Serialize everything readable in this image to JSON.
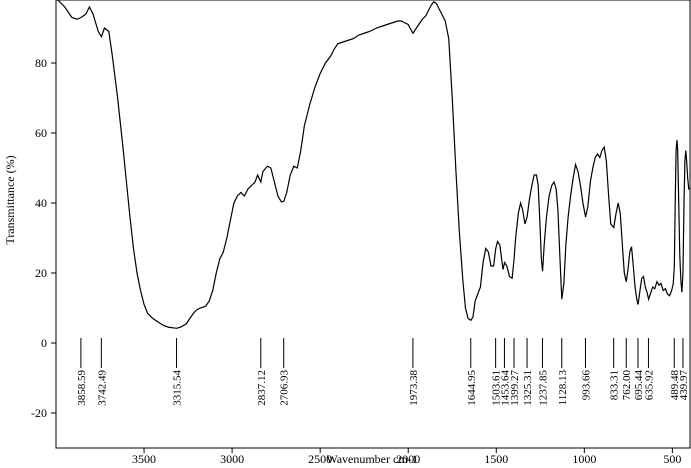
{
  "chart_data": {
    "type": "line",
    "title": "",
    "xlabel": "Wavenumber cm-1",
    "ylabel": "Transmittance (%)",
    "xlim": [
      4000,
      400
    ],
    "ylim": [
      -30,
      98
    ],
    "x_reversed": true,
    "grid": false,
    "x_ticks": [
      3500,
      3000,
      2500,
      2000,
      1500,
      1000,
      500
    ],
    "y_ticks": [
      -20,
      0,
      20,
      40,
      60,
      80
    ],
    "series": [
      {
        "color": "#000000",
        "points": [
          [
            3990,
            98
          ],
          [
            3950,
            96
          ],
          [
            3910,
            93
          ],
          [
            3880,
            92.5
          ],
          [
            3858,
            93
          ],
          [
            3830,
            94
          ],
          [
            3810,
            96
          ],
          [
            3790,
            94
          ],
          [
            3760,
            89
          ],
          [
            3742,
            87.5
          ],
          [
            3725,
            90
          ],
          [
            3700,
            89
          ],
          [
            3680,
            82
          ],
          [
            3650,
            70
          ],
          [
            3620,
            56
          ],
          [
            3600,
            46
          ],
          [
            3580,
            36
          ],
          [
            3560,
            27
          ],
          [
            3540,
            20
          ],
          [
            3520,
            15
          ],
          [
            3500,
            11
          ],
          [
            3480,
            8.5
          ],
          [
            3450,
            7
          ],
          [
            3420,
            6
          ],
          [
            3390,
            5
          ],
          [
            3360,
            4.5
          ],
          [
            3315,
            4.2
          ],
          [
            3290,
            4.6
          ],
          [
            3260,
            5.5
          ],
          [
            3240,
            7
          ],
          [
            3220,
            8.5
          ],
          [
            3200,
            9.5
          ],
          [
            3180,
            10
          ],
          [
            3150,
            10.5
          ],
          [
            3130,
            12
          ],
          [
            3110,
            15
          ],
          [
            3090,
            20
          ],
          [
            3070,
            24
          ],
          [
            3050,
            26
          ],
          [
            3030,
            30
          ],
          [
            3010,
            35
          ],
          [
            2990,
            40
          ],
          [
            2970,
            42
          ],
          [
            2950,
            43
          ],
          [
            2930,
            42
          ],
          [
            2910,
            44
          ],
          [
            2890,
            45
          ],
          [
            2870,
            46
          ],
          [
            2855,
            48
          ],
          [
            2837,
            46
          ],
          [
            2825,
            49
          ],
          [
            2800,
            50.5
          ],
          [
            2780,
            50
          ],
          [
            2760,
            46
          ],
          [
            2740,
            42
          ],
          [
            2720,
            40.3
          ],
          [
            2706,
            40.5
          ],
          [
            2690,
            43
          ],
          [
            2670,
            48
          ],
          [
            2650,
            50.5
          ],
          [
            2630,
            50
          ],
          [
            2610,
            55
          ],
          [
            2590,
            62
          ],
          [
            2560,
            68
          ],
          [
            2530,
            73
          ],
          [
            2500,
            77
          ],
          [
            2470,
            80
          ],
          [
            2440,
            82
          ],
          [
            2420,
            84
          ],
          [
            2400,
            85.5
          ],
          [
            2370,
            86
          ],
          [
            2340,
            86.5
          ],
          [
            2310,
            87
          ],
          [
            2280,
            88
          ],
          [
            2250,
            88.5
          ],
          [
            2220,
            89
          ],
          [
            2200,
            89.5
          ],
          [
            2180,
            90
          ],
          [
            2150,
            90.5
          ],
          [
            2120,
            91
          ],
          [
            2090,
            91.5
          ],
          [
            2060,
            92
          ],
          [
            2040,
            92
          ],
          [
            2020,
            91.5
          ],
          [
            2000,
            91
          ],
          [
            1990,
            90
          ],
          [
            1973,
            88.5
          ],
          [
            1960,
            89.5
          ],
          [
            1940,
            91
          ],
          [
            1920,
            92.5
          ],
          [
            1900,
            93.5
          ],
          [
            1885,
            95
          ],
          [
            1870,
            96.5
          ],
          [
            1855,
            97.5
          ],
          [
            1840,
            97
          ],
          [
            1825,
            95.5
          ],
          [
            1810,
            94
          ],
          [
            1790,
            92
          ],
          [
            1770,
            87
          ],
          [
            1750,
            70
          ],
          [
            1730,
            50
          ],
          [
            1710,
            32
          ],
          [
            1690,
            18
          ],
          [
            1675,
            10
          ],
          [
            1660,
            7
          ],
          [
            1644,
            6.5
          ],
          [
            1632,
            7.5
          ],
          [
            1620,
            12
          ],
          [
            1605,
            14
          ],
          [
            1590,
            16
          ],
          [
            1575,
            23
          ],
          [
            1560,
            27
          ],
          [
            1545,
            26
          ],
          [
            1530,
            22
          ],
          [
            1515,
            22
          ],
          [
            1503,
            27
          ],
          [
            1493,
            29
          ],
          [
            1480,
            28
          ],
          [
            1472,
            25
          ],
          [
            1462,
            21
          ],
          [
            1453,
            23
          ],
          [
            1440,
            22
          ],
          [
            1425,
            19
          ],
          [
            1410,
            18.5
          ],
          [
            1399,
            24
          ],
          [
            1390,
            30
          ],
          [
            1375,
            37
          ],
          [
            1362,
            40
          ],
          [
            1350,
            38
          ],
          [
            1337,
            34
          ],
          [
            1325,
            36
          ],
          [
            1312,
            41
          ],
          [
            1298,
            45
          ],
          [
            1285,
            48
          ],
          [
            1272,
            48
          ],
          [
            1262,
            45
          ],
          [
            1252,
            34
          ],
          [
            1244,
            24
          ],
          [
            1237,
            20.5
          ],
          [
            1228,
            28
          ],
          [
            1215,
            36
          ],
          [
            1200,
            42
          ],
          [
            1185,
            45
          ],
          [
            1172,
            46
          ],
          [
            1160,
            44
          ],
          [
            1150,
            38
          ],
          [
            1140,
            26
          ],
          [
            1128,
            12.5
          ],
          [
            1116,
            17
          ],
          [
            1105,
            28
          ],
          [
            1092,
            36
          ],
          [
            1078,
            42
          ],
          [
            1064,
            47
          ],
          [
            1050,
            51
          ],
          [
            1036,
            49
          ],
          [
            1022,
            45
          ],
          [
            1008,
            40
          ],
          [
            993,
            36
          ],
          [
            980,
            39
          ],
          [
            966,
            46
          ],
          [
            952,
            50
          ],
          [
            938,
            53
          ],
          [
            925,
            54
          ],
          [
            912,
            53
          ],
          [
            900,
            55
          ],
          [
            887,
            56
          ],
          [
            875,
            52
          ],
          [
            862,
            42
          ],
          [
            850,
            34
          ],
          [
            833,
            33
          ],
          [
            820,
            37
          ],
          [
            808,
            40
          ],
          [
            796,
            37
          ],
          [
            784,
            28
          ],
          [
            773,
            20
          ],
          [
            762,
            17.5
          ],
          [
            752,
            21
          ],
          [
            742,
            26
          ],
          [
            732,
            27.5
          ],
          [
            722,
            22
          ],
          [
            712,
            16
          ],
          [
            702,
            12.5
          ],
          [
            695,
            11
          ],
          [
            684,
            15
          ],
          [
            674,
            18.5
          ],
          [
            664,
            19
          ],
          [
            654,
            16
          ],
          [
            644,
            14.5
          ],
          [
            635,
            12.5
          ],
          [
            625,
            14
          ],
          [
            612,
            16
          ],
          [
            600,
            15.5
          ],
          [
            588,
            17.5
          ],
          [
            576,
            16.5
          ],
          [
            565,
            17
          ],
          [
            552,
            15
          ],
          [
            540,
            15.5
          ],
          [
            528,
            14
          ],
          [
            516,
            13.5
          ],
          [
            504,
            15
          ],
          [
            495,
            17
          ],
          [
            489,
            22
          ],
          [
            484,
            40
          ],
          [
            479,
            55
          ],
          [
            474,
            58
          ],
          [
            470,
            55
          ],
          [
            464,
            40
          ],
          [
            458,
            25
          ],
          [
            452,
            18
          ],
          [
            446,
            14.5
          ],
          [
            440,
            20
          ],
          [
            434,
            40
          ],
          [
            429,
            52
          ],
          [
            424,
            55
          ],
          [
            419,
            52
          ],
          [
            413,
            47
          ],
          [
            407,
            44
          ],
          [
            402,
            44
          ]
        ]
      }
    ],
    "peak_labels": [
      {
        "x": 3858.59,
        "label": "3858.59"
      },
      {
        "x": 3742.49,
        "label": "3742.49"
      },
      {
        "x": 3315.54,
        "label": "3315.54"
      },
      {
        "x": 2837.12,
        "label": "2837.12"
      },
      {
        "x": 2706.93,
        "label": "2706.93"
      },
      {
        "x": 1973.38,
        "label": "1973.38"
      },
      {
        "x": 1644.95,
        "label": "1644.95"
      },
      {
        "x": 1503.61,
        "label": "1503.61"
      },
      {
        "x": 1453.64,
        "label": "1453.64"
      },
      {
        "x": 1399.27,
        "label": "1399.27"
      },
      {
        "x": 1325.31,
        "label": "1325.31"
      },
      {
        "x": 1237.85,
        "label": "1237.85"
      },
      {
        "x": 1128.13,
        "label": "1128.13"
      },
      {
        "x": 993.66,
        "label": "993.66"
      },
      {
        "x": 833.31,
        "label": "833.31"
      },
      {
        "x": 762.0,
        "label": "762.00"
      },
      {
        "x": 695.44,
        "label": "695.44"
      },
      {
        "x": 635.92,
        "label": "635.92"
      },
      {
        "x": 489.48,
        "label": "489.48"
      },
      {
        "x": 439.97,
        "label": "439.97"
      }
    ]
  }
}
